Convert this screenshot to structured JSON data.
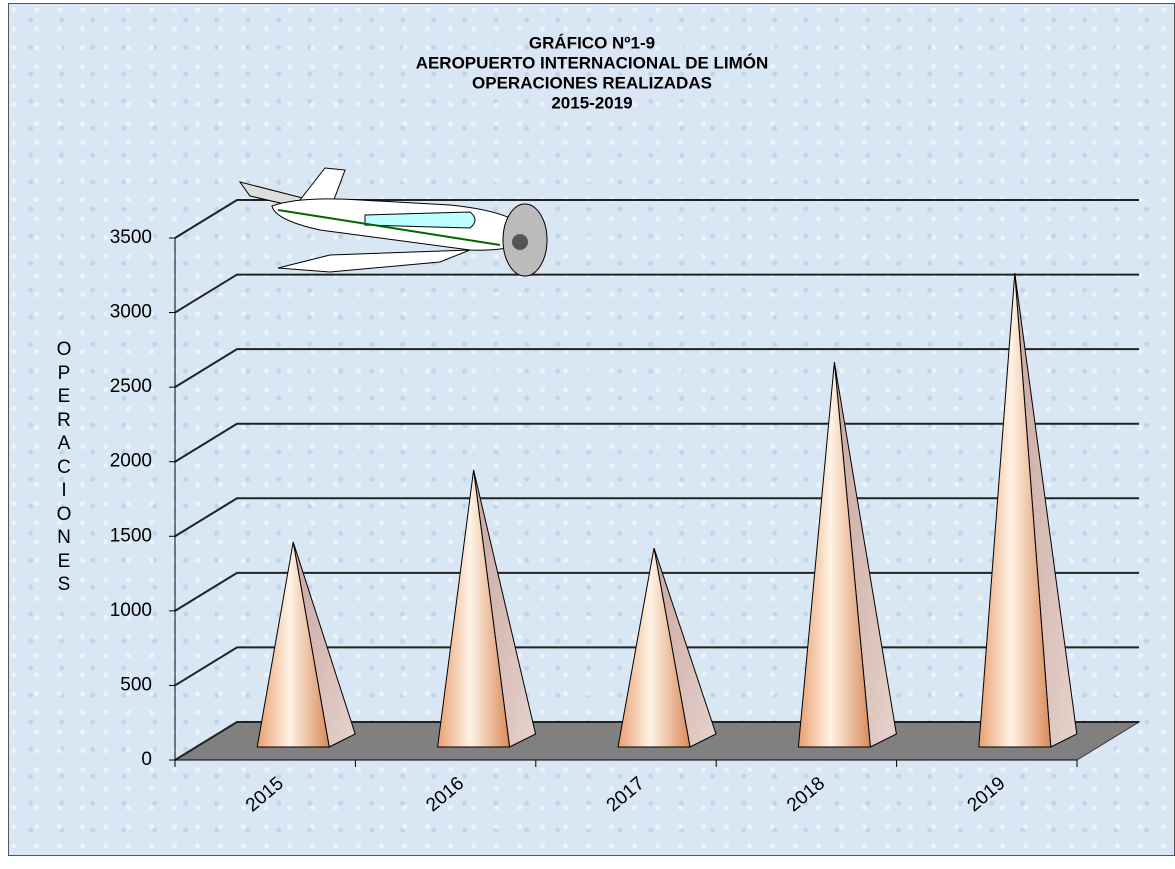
{
  "chart_data": {
    "type": "pyramid",
    "title": [
      "GRÁFICO Nº1-9",
      "AEROPUERTO  INTERNACIONAL  DE  LIMÓN",
      "OPERACIONES  REALIZADAS",
      "2015-2019"
    ],
    "y_label": "OPERACIONES",
    "categories": [
      "2015",
      "2016",
      "2017",
      "2018",
      "2019"
    ],
    "values": [
      1374,
      1857,
      1334,
      2580,
      3177
    ],
    "ylim": [
      0,
      3500
    ],
    "yticks": [
      0,
      500,
      1000,
      1500,
      2000,
      2500,
      3000,
      3500
    ],
    "grid": true
  }
}
